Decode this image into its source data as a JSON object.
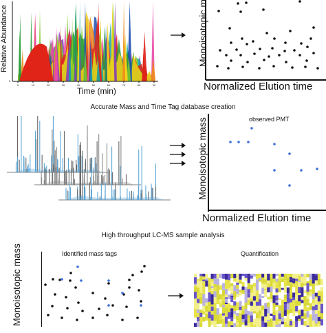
{
  "panel1": {
    "y_axis_label": "Relative Abundance",
    "x_axis_label": "Time (min)",
    "x_ticks": [
      "0",
      "10",
      "20",
      "30",
      "40",
      "50",
      "60",
      "70",
      "80",
      "90"
    ],
    "y_ticks": [
      "0"
    ],
    "colors": [
      "#e02418",
      "#2a9d3a",
      "#f2d21a",
      "#1f4fb0",
      "#8a3fb6",
      "#f08a1c",
      "#1aa6a6",
      "#7acb2a",
      "#e84aa8"
    ]
  },
  "panel2": {
    "y_axis_label": "Monoisotopic m",
    "x_axis_label": "Normalized Elution time",
    "point_color": "#111111"
  },
  "caption1": "Accurate Mass and Time Tag database creation",
  "panel3": {
    "spectrum_colors": [
      "#5aa6d6",
      "#888888"
    ]
  },
  "panel4": {
    "y_axis_label": "Monoisotopic mass",
    "x_axis_label": "Normalized Elution time",
    "title": "observed PMT",
    "point_color": "#3d6fd9"
  },
  "caption2": "High throughput LC-MS sample analysis",
  "panel5": {
    "y_axis_label": "Monoisotopic mass",
    "title": "Identified mass tags",
    "point_color": "#111111",
    "highlight_color": "#3d6fd9"
  },
  "panel6": {
    "title": "Quantification",
    "heatmap_colors": [
      "#f3f08a",
      "#e7e34a",
      "#d9d938",
      "#ffffff",
      "#b9b2e0",
      "#6a55c8",
      "#3a2a9c"
    ]
  }
}
